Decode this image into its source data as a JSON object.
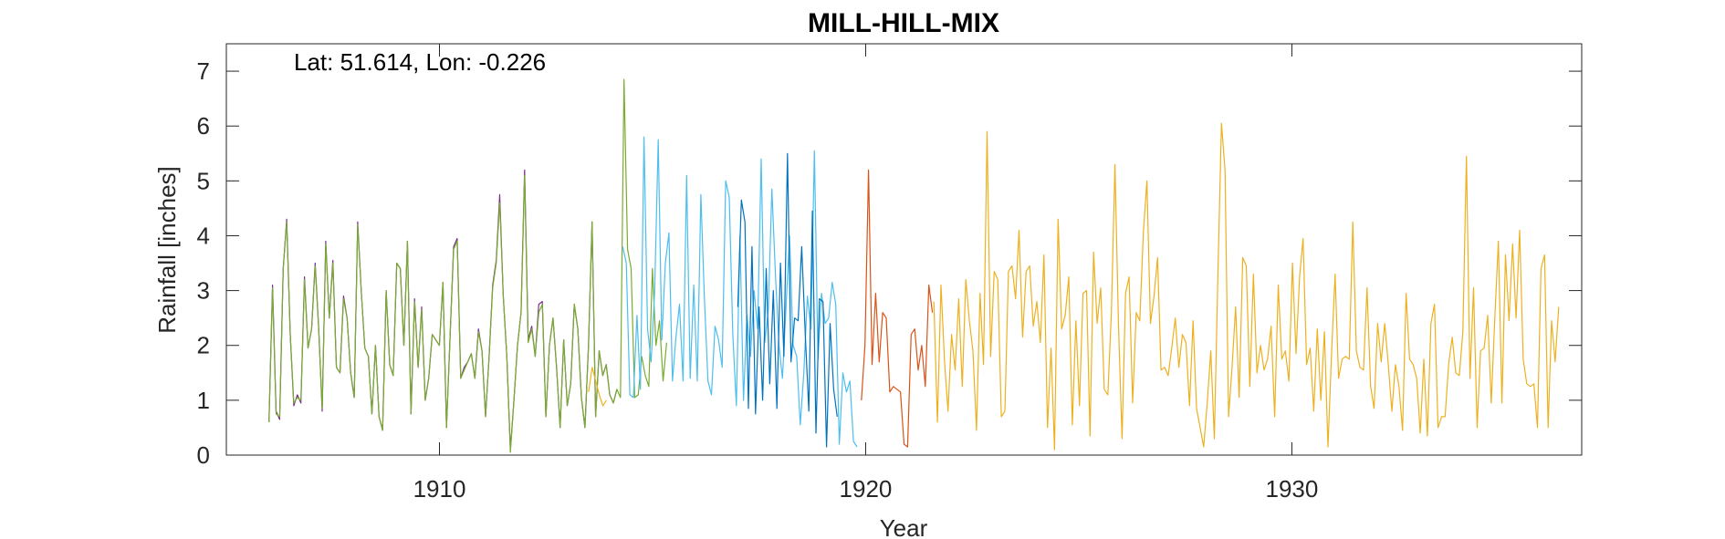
{
  "chart_data": {
    "type": "line",
    "title": "MILL-HILL-MIX",
    "xlabel": "Year",
    "ylabel": "Rainfall [inches]",
    "annotation": "Lat: 51.614, Lon: -0.226",
    "xlim": [
      1905.0,
      1936.8
    ],
    "ylim": [
      0,
      7.5
    ],
    "xticks": [
      1910,
      1920,
      1930
    ],
    "yticks": [
      0,
      1,
      2,
      3,
      4,
      5,
      6,
      7
    ],
    "grid": false,
    "x_start": 1906.0,
    "x_step": 0.0833,
    "series": [
      {
        "color": "#7E2F8E",
        "x_start": 1906.0,
        "values": [
          0.6,
          3.1,
          0.8,
          0.65,
          3.4,
          4.3,
          2.2,
          0.9,
          1.1,
          0.95,
          3.25,
          1.95,
          2.3,
          3.5,
          2.3,
          0.8,
          3.9,
          2.5,
          3.55,
          1.6,
          1.5,
          2.9,
          2.5,
          1.5,
          1.05,
          4.25,
          3.0,
          1.95,
          1.8,
          0.75,
          2.0,
          0.7,
          0.45,
          3.0,
          1.65,
          1.45,
          3.5,
          3.4,
          2.0,
          3.9,
          0.75,
          2.85,
          1.6,
          2.7,
          1.0,
          1.4,
          2.2,
          2.1,
          2.0,
          3.15,
          0.5,
          2.15,
          3.8,
          3.95,
          1.4,
          1.6,
          1.7,
          1.85,
          1.4,
          2.3,
          1.9,
          0.7,
          1.8,
          3.1,
          3.55,
          4.75,
          2.9,
          1.8,
          0.1,
          1.0,
          2.0,
          2.6,
          5.2,
          2.1,
          2.35,
          1.8,
          2.75,
          2.8,
          0.7,
          2.0,
          2.5,
          1.6,
          0.5,
          2.1,
          0.9,
          1.3,
          2.75,
          2.3,
          1.05,
          0.5,
          2.0,
          4.25,
          0.7,
          1.9,
          1.45,
          1.65,
          1.1,
          0.95,
          1.2
        ]
      },
      {
        "color": "#77AC30",
        "x_start": 1906.0,
        "values": [
          0.6,
          3.05,
          0.75,
          0.7,
          3.4,
          4.25,
          2.2,
          0.95,
          1.05,
          1.0,
          3.2,
          1.95,
          2.3,
          3.45,
          2.3,
          0.85,
          3.85,
          2.5,
          3.5,
          1.6,
          1.5,
          2.85,
          2.5,
          1.5,
          1.05,
          4.2,
          3.0,
          1.95,
          1.8,
          0.75,
          2.0,
          0.7,
          0.45,
          3.0,
          1.65,
          1.45,
          3.5,
          3.4,
          2.0,
          3.9,
          0.75,
          2.8,
          1.6,
          2.65,
          1.0,
          1.4,
          2.2,
          2.1,
          2.0,
          3.15,
          0.5,
          2.15,
          3.75,
          3.9,
          1.4,
          1.55,
          1.7,
          1.85,
          1.4,
          2.25,
          1.9,
          0.7,
          1.8,
          3.05,
          3.5,
          4.6,
          2.9,
          1.8,
          0.05,
          1.0,
          2.0,
          2.6,
          5.1,
          2.05,
          2.3,
          1.8,
          2.6,
          2.75,
          0.7,
          2.0,
          2.5,
          1.6,
          0.5,
          2.1,
          0.9,
          1.3,
          2.75,
          2.3,
          1.05,
          0.5,
          2.0,
          4.25,
          0.7,
          1.9,
          1.45,
          1.65,
          1.1,
          0.95,
          1.2,
          1.05,
          6.85,
          3.75,
          3.4,
          1.05,
          1.1,
          1.8,
          1.45,
          1.25,
          3.4,
          2.0,
          2.45,
          1.35,
          2.05
        ]
      },
      {
        "color": "#EDB120",
        "x_start": 1913.5,
        "values": [
          1.15,
          1.6,
          1.35,
          1.1,
          0.9,
          1.0
        ]
      },
      {
        "color": "#4DBEEE",
        "x_start": 1914.3,
        "values": [
          3.8,
          3.5,
          1.1,
          1.05,
          2.55,
          1.2,
          5.8,
          2.3,
          1.7,
          3.0,
          5.75,
          2.1,
          3.5,
          4.05,
          1.35,
          2.15,
          2.75,
          1.35,
          5.1,
          1.4,
          3.1,
          1.35,
          4.75,
          2.85,
          1.35,
          1.1,
          2.35,
          2.1,
          1.6,
          5.0,
          4.7,
          2.2,
          0.9,
          4.0,
          1.0,
          2.55,
          1.8,
          3.0,
          2.3,
          5.4,
          2.05,
          2.65,
          4.85,
          3.3,
          2.0,
          1.4,
          2.7,
          4.0,
          2.0,
          1.8,
          0.55,
          1.5,
          2.9,
          2.3,
          5.55,
          1.75,
          2.95,
          2.4,
          2.5,
          3.15,
          2.75,
          0.2,
          1.5,
          1.15,
          1.35,
          0.25,
          0.15
        ]
      },
      {
        "color": "#0072BD",
        "x_start": 1917.0,
        "values": [
          2.7,
          4.65,
          4.25,
          0.85,
          3.8,
          0.75,
          2.7,
          1.0,
          3.4,
          1.3,
          3.0,
          0.85,
          3.5,
          1.8,
          5.5,
          1.7,
          2.5,
          2.45,
          3.8,
          2.2,
          0.8,
          4.45,
          0.4,
          2.85,
          2.8,
          0.15,
          2.4,
          1.2,
          0.7
        ]
      },
      {
        "color": "#D95319",
        "x_start": 1919.9,
        "values": [
          1.0,
          2.0,
          5.2,
          1.65,
          2.95,
          1.7,
          2.6,
          2.5,
          1.15,
          1.25,
          1.2,
          1.15,
          0.2,
          0.15,
          2.2,
          2.3,
          1.55,
          2.0,
          1.25,
          3.1,
          2.6
        ]
      },
      {
        "color": "#EDB120",
        "x_start": 1921.6,
        "values": [
          2.8,
          0.6,
          3.1,
          1.7,
          0.8,
          2.2,
          1.55,
          2.85,
          1.25,
          3.2,
          2.45,
          1.9,
          0.45,
          2.95,
          1.65,
          5.9,
          1.8,
          3.35,
          3.2,
          0.7,
          0.8,
          3.35,
          3.45,
          2.85,
          4.1,
          2.15,
          3.35,
          3.45,
          2.35,
          2.8,
          2.05,
          3.65,
          0.5,
          1.95,
          0.1,
          4.3,
          2.3,
          2.55,
          3.25,
          0.55,
          2.45,
          0.9,
          2.95,
          3.0,
          0.35,
          3.7,
          2.4,
          3.05,
          1.2,
          1.1,
          2.6,
          5.3,
          2.35,
          0.3,
          2.95,
          3.25,
          0.95,
          2.6,
          2.45,
          4.05,
          5.0,
          2.4,
          2.9,
          3.6,
          1.55,
          1.6,
          1.45,
          1.95,
          2.5,
          1.6,
          2.2,
          2.05,
          0.9,
          2.45,
          0.85,
          0.5,
          0.15,
          0.95,
          1.9,
          0.3,
          3.3,
          6.05,
          5.2,
          0.7,
          1.6,
          2.7,
          1.05,
          3.6,
          3.45,
          1.25,
          3.3,
          1.5,
          2.0,
          1.55,
          1.75,
          2.35,
          0.7,
          3.1,
          1.75,
          1.9,
          1.35,
          3.5,
          1.85,
          3.25,
          3.95,
          1.65,
          1.95,
          0.8,
          2.3,
          1.0,
          2.25,
          0.15,
          1.85,
          3.3,
          1.4,
          1.75,
          1.8,
          1.75,
          4.25,
          1.9,
          1.6,
          1.55,
          3.05,
          1.25,
          0.85,
          2.4,
          1.7,
          2.4,
          1.65,
          0.8,
          1.65,
          1.25,
          0.45,
          2.95,
          1.75,
          1.65,
          1.4,
          0.4,
          1.75,
          0.35,
          2.4,
          2.75,
          0.5,
          0.7,
          0.7,
          1.65,
          2.15,
          1.5,
          1.45,
          2.25,
          5.45,
          1.4,
          3.05,
          0.5,
          1.9,
          1.95,
          2.55,
          0.95,
          2.5,
          3.9,
          0.95,
          3.65,
          2.45,
          3.85,
          2.5,
          4.1,
          1.75,
          1.3,
          1.25,
          1.3,
          0.5,
          3.4,
          3.65,
          0.5,
          2.45,
          1.7,
          2.7
        ]
      }
    ]
  }
}
